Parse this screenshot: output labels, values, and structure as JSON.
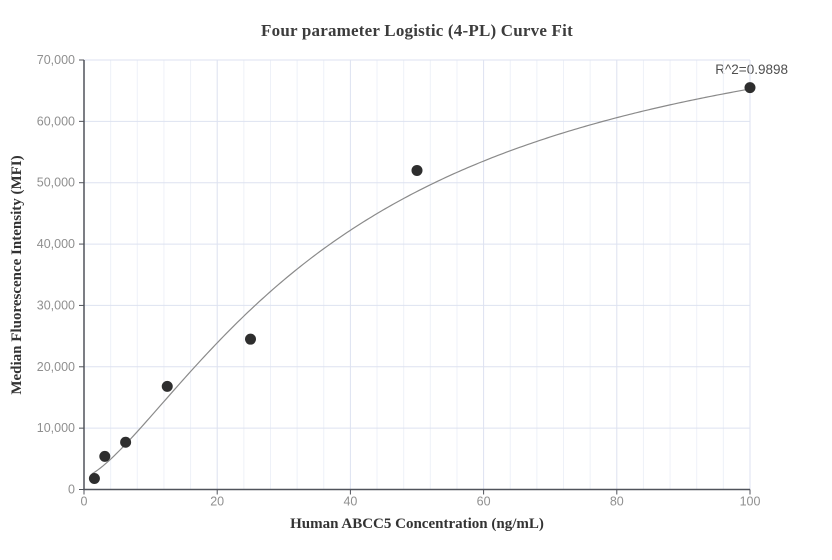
{
  "chart_data": {
    "type": "scatter",
    "title": "Four parameter Logistic (4-PL) Curve Fit",
    "xlabel": "Human ABCC5 Concentration (ng/mL)",
    "ylabel": "Median Fluorescence Intensity (MFI)",
    "r_squared": "R^2=0.9898",
    "xlim": [
      0,
      100
    ],
    "ylim": [
      0,
      70000
    ],
    "x_ticks": [
      0,
      20,
      40,
      60,
      80,
      100
    ],
    "x_tick_labels": [
      "0",
      "20",
      "40",
      "60",
      "80",
      "100"
    ],
    "y_ticks": [
      0,
      10000,
      20000,
      30000,
      40000,
      50000,
      60000,
      70000
    ],
    "y_tick_labels": [
      "0",
      "10,000",
      "20,000",
      "30,000",
      "40,000",
      "50,000",
      "60,000",
      "70,000"
    ],
    "grid": {
      "x_minor_step": 4,
      "x_major_step": 20,
      "y_major_step": 10000,
      "y_minor": false
    },
    "legend": "none",
    "points": [
      {
        "x": 1.5625,
        "y": 1800
      },
      {
        "x": 3.125,
        "y": 5400
      },
      {
        "x": 6.25,
        "y": 7700
      },
      {
        "x": 12.5,
        "y": 16800
      },
      {
        "x": 25,
        "y": 24500
      },
      {
        "x": 50,
        "y": 52000
      },
      {
        "x": 100,
        "y": 65500
      }
    ],
    "fit": {
      "model": "4PL",
      "a": 2000,
      "b": 1.42,
      "c": 40,
      "d": 82500,
      "x_start": 1.2,
      "x_end": 100
    }
  },
  "colors": {
    "background": "#ffffff",
    "title_text": "#3c3c3c",
    "axis_label_text": "#333333",
    "tick_label_text": "#8f8f8f",
    "annotation_text": "#4f4f4f",
    "axis_line": "#50535b",
    "grid_major": "#dde2f0",
    "grid_minor": "#eef1f8",
    "curve": "#8a8a8a",
    "point": "#2e2e2e"
  }
}
